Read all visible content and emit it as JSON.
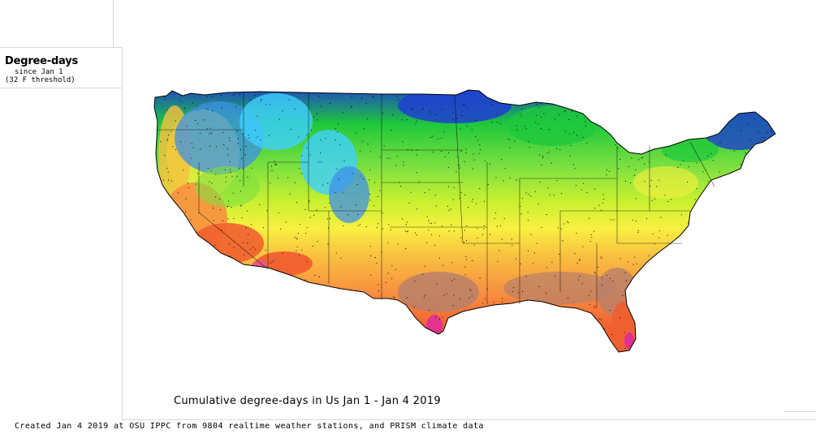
{
  "legend": {
    "title": "Degree-days",
    "line1": "since Jan 1",
    "line2": "(32 F threshold)"
  },
  "map": {
    "title": "Cumulative degree-days in Us  Jan 1 - Jan 4 2019",
    "palette": [
      "#1f3fd0",
      "#3f8fe8",
      "#3fd0ff",
      "#1ec83c",
      "#7fe040",
      "#c8f030",
      "#f8f040",
      "#f8c040",
      "#f89040",
      "#f06030",
      "#e85a80",
      "#b8806a",
      "#e02aa0"
    ]
  },
  "footer": {
    "text": "Created Jan 4 2019 at OSU IPPC from 9804 realtime weather stations, and PRISM climate data"
  }
}
